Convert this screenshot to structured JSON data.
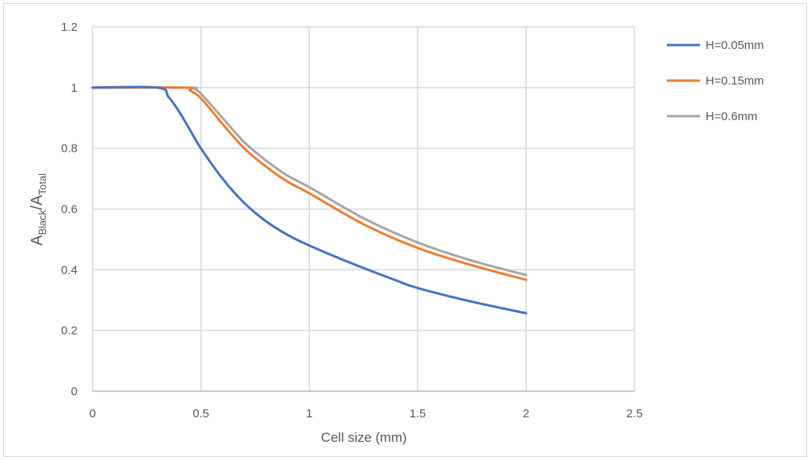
{
  "chart_data": {
    "type": "line",
    "title": "",
    "xlabel": "Cell size (mm)",
    "ylabel_main": "A",
    "ylabel_sub1": "Black",
    "ylabel_sep": "/A",
    "ylabel_sub2": "Total",
    "xlim": [
      0,
      2.5
    ],
    "ylim": [
      0,
      1.2
    ],
    "xticks": [
      "0",
      "0.5",
      "1",
      "1.5",
      "2",
      "2.5"
    ],
    "xtick_values": [
      0,
      0.5,
      1,
      1.5,
      2,
      2.5
    ],
    "yticks": [
      "0",
      "0.2",
      "0.4",
      "0.6",
      "0.8",
      "1",
      "1.2"
    ],
    "ytick_values": [
      0,
      0.2,
      0.4,
      0.6,
      0.8,
      1,
      1.2
    ],
    "grid": true,
    "legend_position": "right",
    "series": [
      {
        "name": "H=0.05mm",
        "color": "#4472c4",
        "x": [
          0,
          0.3,
          0.35,
          0.4,
          0.45,
          0.5,
          0.6,
          0.7,
          0.8,
          0.9,
          1,
          1.2,
          1.4,
          1.5,
          1.75,
          2
        ],
        "y": [
          1,
          1,
          0.97,
          0.92,
          0.86,
          0.8,
          0.7,
          0.62,
          0.56,
          0.515,
          0.48,
          0.42,
          0.365,
          0.34,
          0.295,
          0.257
        ]
      },
      {
        "name": "H=0.15mm",
        "color": "#ed7d31",
        "x": [
          0,
          0.42,
          0.45,
          0.5,
          0.6,
          0.7,
          0.8,
          0.9,
          1,
          1.25,
          1.5,
          1.75,
          2
        ],
        "y": [
          1,
          1,
          0.99,
          0.965,
          0.88,
          0.8,
          0.74,
          0.69,
          0.652,
          0.55,
          0.472,
          0.415,
          0.367
        ]
      },
      {
        "name": "H=0.6mm",
        "color": "#a5a5a5",
        "x": [
          0,
          0.44,
          0.47,
          0.5,
          0.6,
          0.7,
          0.8,
          0.9,
          1,
          1.25,
          1.5,
          1.75,
          2
        ],
        "y": [
          1,
          1,
          0.995,
          0.98,
          0.9,
          0.82,
          0.76,
          0.71,
          0.672,
          0.57,
          0.49,
          0.43,
          0.383
        ]
      }
    ]
  }
}
